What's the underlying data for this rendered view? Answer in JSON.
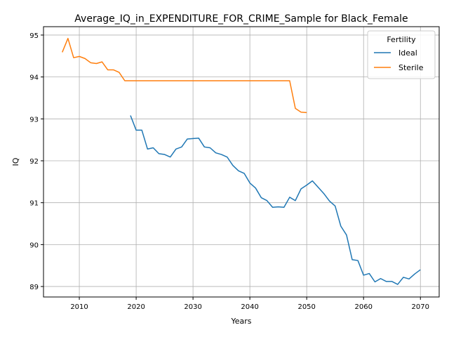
{
  "chart_data": {
    "type": "line",
    "title": "Average_IQ_in_EXPENDITURE_FOR_CRIME_Sample for Black_Female",
    "xlabel": "Years",
    "ylabel": "IQ",
    "xlim": [
      2003.7,
      2073.3
    ],
    "ylim": [
      88.75,
      95.2
    ],
    "xticks": [
      2010,
      2020,
      2030,
      2040,
      2050,
      2060,
      2070
    ],
    "yticks": [
      89,
      90,
      91,
      92,
      93,
      94,
      95
    ],
    "grid": true,
    "legend": {
      "title": "Fertility",
      "placement": "top-right"
    },
    "series": [
      {
        "name": "Ideal",
        "color": "#1f77b4",
        "x": [
          2019,
          2020,
          2021,
          2022,
          2023,
          2024,
          2025,
          2026,
          2027,
          2028,
          2029,
          2030,
          2031,
          2032,
          2033,
          2034,
          2035,
          2036,
          2037,
          2038,
          2039,
          2040,
          2041,
          2042,
          2043,
          2044,
          2045,
          2046,
          2047,
          2048,
          2049,
          2050,
          2051,
          2052,
          2053,
          2054,
          2055,
          2056,
          2057,
          2058,
          2059,
          2060,
          2061,
          2062,
          2063,
          2064,
          2065,
          2066,
          2067,
          2068,
          2069,
          2070
        ],
        "y": [
          93.08,
          92.73,
          92.73,
          92.28,
          92.31,
          92.17,
          92.15,
          92.09,
          92.28,
          92.33,
          92.52,
          92.53,
          92.54,
          92.33,
          92.31,
          92.19,
          92.15,
          92.09,
          91.89,
          91.76,
          91.7,
          91.47,
          91.35,
          91.12,
          91.05,
          90.89,
          90.9,
          90.89,
          91.13,
          91.05,
          91.33,
          91.42,
          91.52,
          91.37,
          91.22,
          91.04,
          90.92,
          90.44,
          90.23,
          89.64,
          89.62,
          89.27,
          89.31,
          89.11,
          89.19,
          89.12,
          89.12,
          89.05,
          89.22,
          89.18,
          89.3,
          89.4
        ]
      },
      {
        "name": "Sterile",
        "color": "#ff7f0e",
        "x": [
          2007,
          2008,
          2009,
          2010,
          2011,
          2012,
          2013,
          2014,
          2015,
          2016,
          2017,
          2018,
          2019,
          2020,
          2021,
          2022,
          2023,
          2024,
          2025,
          2026,
          2027,
          2028,
          2029,
          2030,
          2031,
          2032,
          2033,
          2034,
          2035,
          2036,
          2037,
          2038,
          2039,
          2040,
          2041,
          2042,
          2043,
          2044,
          2045,
          2046,
          2047,
          2048,
          2049,
          2050
        ],
        "y": [
          94.59,
          94.92,
          94.46,
          94.49,
          94.44,
          94.34,
          94.32,
          94.36,
          94.17,
          94.17,
          94.11,
          93.91,
          93.91,
          93.91,
          93.91,
          93.91,
          93.91,
          93.91,
          93.91,
          93.91,
          93.91,
          93.91,
          93.91,
          93.91,
          93.91,
          93.91,
          93.91,
          93.91,
          93.91,
          93.91,
          93.91,
          93.91,
          93.91,
          93.91,
          93.91,
          93.91,
          93.91,
          93.91,
          93.91,
          93.91,
          93.91,
          93.25,
          93.16,
          93.15
        ]
      }
    ]
  }
}
